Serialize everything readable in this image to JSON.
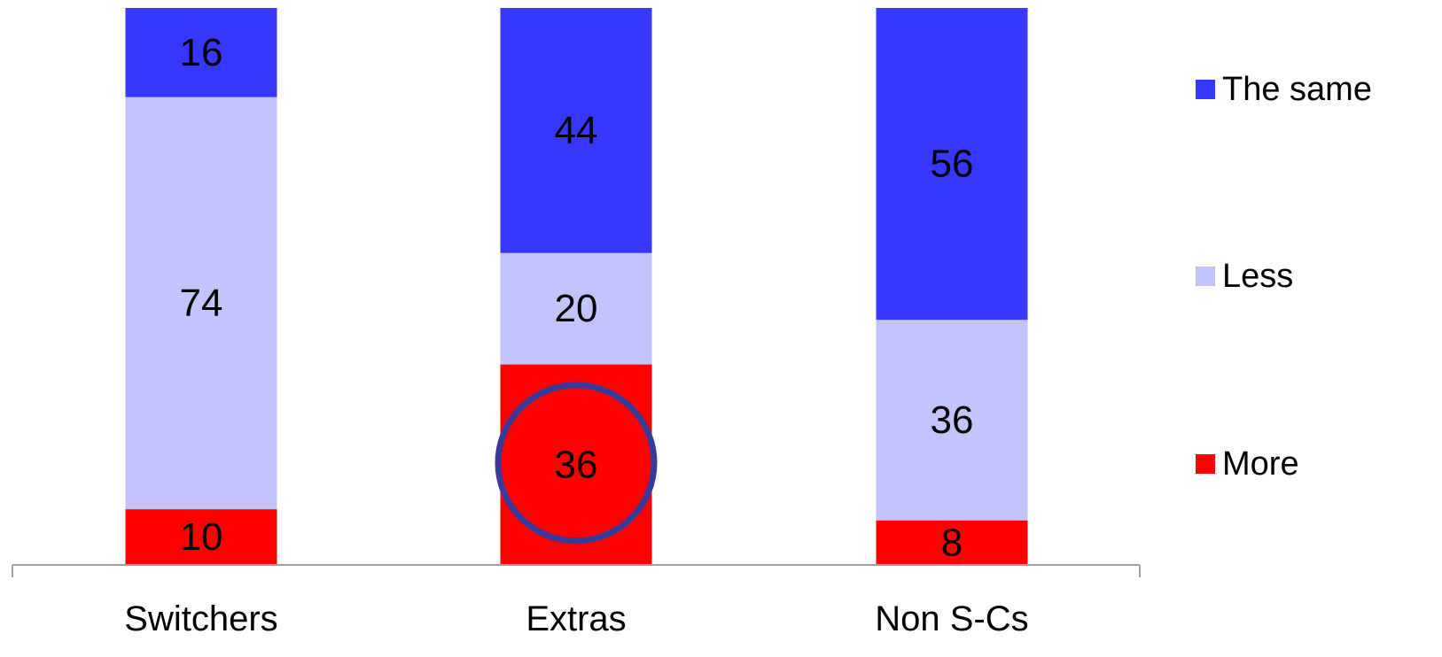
{
  "chart_data": {
    "type": "bar",
    "stacked": true,
    "categories": [
      "Switchers",
      "Extras",
      "Non S-Cs"
    ],
    "series": [
      {
        "name": "More",
        "values": [
          10,
          36,
          8
        ],
        "color": "#ff0000"
      },
      {
        "name": "Less",
        "values": [
          74,
          20,
          36
        ],
        "color": "#c4c4fd"
      },
      {
        "name": "The same",
        "values": [
          16,
          44,
          56
        ],
        "color": "#3737fd"
      }
    ],
    "legend_order": [
      "The same",
      "Less",
      "More"
    ],
    "legend_position": "right",
    "grid": false,
    "ylim": [
      0,
      100
    ],
    "highlight": {
      "category": "Extras",
      "series": "More",
      "shape": "circle",
      "color": "#39399a"
    }
  }
}
